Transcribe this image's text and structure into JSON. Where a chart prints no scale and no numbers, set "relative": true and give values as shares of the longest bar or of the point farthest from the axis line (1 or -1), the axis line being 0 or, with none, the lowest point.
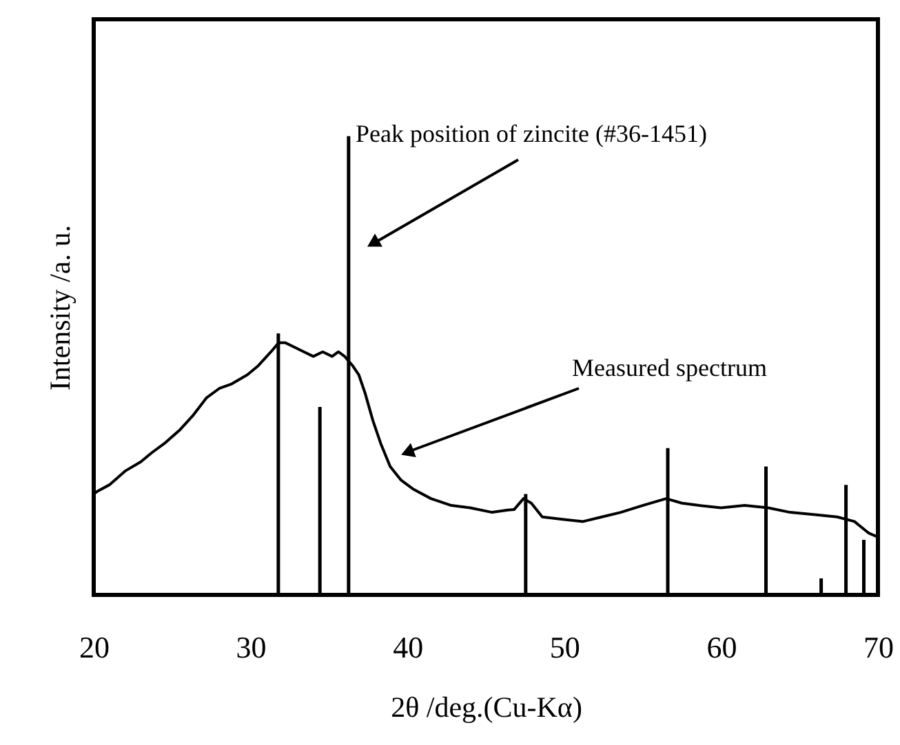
{
  "chart_data": {
    "type": "line",
    "xlabel": "2θ /deg.(Cu-Kα)",
    "ylabel": "Intensity /a. u.",
    "relative": true,
    "xlim": [
      20,
      70
    ],
    "xticks": [
      20,
      30,
      40,
      50,
      60,
      70
    ],
    "grid": false,
    "annotations": [
      "Peak position of zincite (#36-1451)",
      "Measured spectrum"
    ],
    "series": [
      {
        "color": "#000000",
        "x": [
          20.0,
          20.2,
          21.0,
          22.0,
          23.0,
          23.7,
          24.5,
          25.5,
          26.3,
          27.2,
          28.0,
          28.8,
          29.8,
          30.5,
          31.3,
          31.8,
          32.2,
          32.8,
          33.4,
          34.0,
          34.6,
          35.2,
          35.6,
          36.0,
          36.5,
          36.9,
          37.3,
          37.8,
          38.3,
          38.9,
          39.6,
          40.4,
          41.5,
          42.8,
          44.0,
          45.4,
          46.4,
          46.8,
          47.4,
          47.9,
          48.6,
          49.8,
          51.2,
          52.4,
          53.6,
          55.0,
          56.5,
          57.5,
          58.6,
          60.0,
          61.5,
          63.0,
          64.4,
          66.0,
          67.4,
          68.5,
          69.4,
          70.0
        ],
        "values": [
          0.22,
          0.225,
          0.24,
          0.27,
          0.29,
          0.31,
          0.33,
          0.36,
          0.39,
          0.43,
          0.45,
          0.46,
          0.48,
          0.5,
          0.53,
          0.55,
          0.55,
          0.54,
          0.53,
          0.52,
          0.53,
          0.52,
          0.53,
          0.52,
          0.5,
          0.48,
          0.44,
          0.38,
          0.33,
          0.28,
          0.25,
          0.23,
          0.21,
          0.195,
          0.19,
          0.18,
          0.185,
          0.186,
          0.21,
          0.2,
          0.17,
          0.165,
          0.16,
          0.17,
          0.18,
          0.195,
          0.21,
          0.2,
          0.195,
          0.19,
          0.195,
          0.19,
          0.18,
          0.175,
          0.17,
          0.16,
          0.135,
          0.126
        ]
      },
      {
        "type": "bar",
        "color": "#000000",
        "x": [
          31.77,
          34.42,
          36.25,
          47.54,
          56.6,
          62.86,
          66.38,
          67.96,
          69.1
        ],
        "values": [
          0.57,
          0.41,
          1,
          0.22,
          0.32,
          0.28,
          0.036,
          0.24,
          0.12
        ]
      }
    ]
  }
}
